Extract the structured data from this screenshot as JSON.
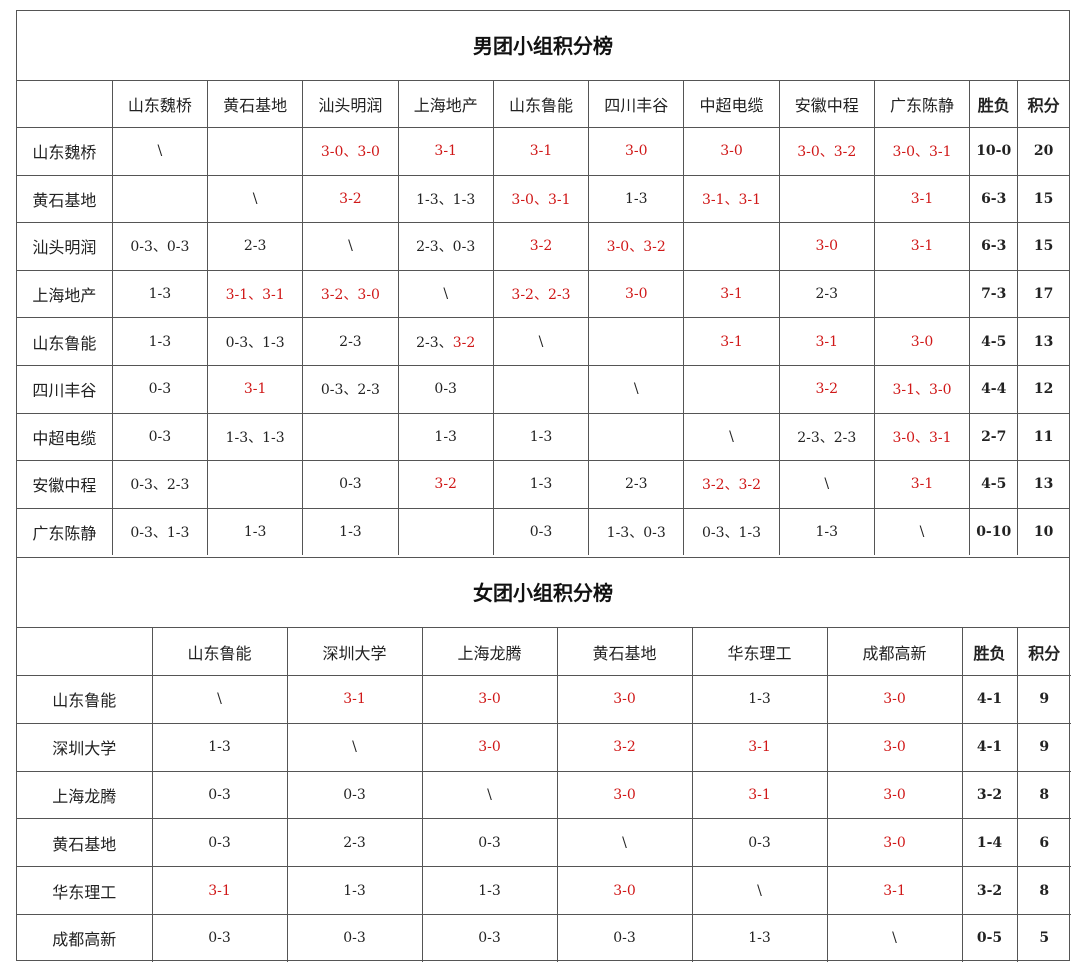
{
  "men": {
    "title": "男团小组积分榜",
    "headers": [
      "山东魏桥",
      "黄石基地",
      "汕头明润",
      "上海地产",
      "山东鲁能",
      "四川丰谷",
      "中超电缆",
      "安徽中程",
      "广东陈静",
      "胜负",
      "积分"
    ],
    "rows": [
      {
        "team": "山东魏桥",
        "cells": [
          {
            "t": "\\",
            "s": "self"
          },
          {
            "t": "",
            "s": "loss"
          },
          {
            "t": "3-0、3-0",
            "s": "win"
          },
          {
            "t": "3-1",
            "s": "win"
          },
          {
            "t": "3-1",
            "s": "win"
          },
          {
            "t": "3-0",
            "s": "win"
          },
          {
            "t": "3-0",
            "s": "win"
          },
          {
            "t": "3-0、3-2",
            "s": "win"
          },
          {
            "t": "3-0、3-1",
            "s": "win"
          }
        ],
        "record": "10-0",
        "points": "20"
      },
      {
        "team": "黄石基地",
        "cells": [
          {
            "t": "",
            "s": "loss"
          },
          {
            "t": "\\",
            "s": "self"
          },
          {
            "t": "3-2",
            "s": "win"
          },
          {
            "t": "1-3、1-3",
            "s": "loss"
          },
          {
            "t": "3-0、3-1",
            "s": "win"
          },
          {
            "t": "1-3",
            "s": "loss"
          },
          {
            "t": "3-1、3-1",
            "s": "win"
          },
          {
            "t": "",
            "s": "loss"
          },
          {
            "t": "3-1",
            "s": "win"
          }
        ],
        "record": "6-3",
        "points": "15"
      },
      {
        "team": "汕头明润",
        "cells": [
          {
            "t": "0-3、0-3",
            "s": "loss"
          },
          {
            "t": "2-3",
            "s": "loss"
          },
          {
            "t": "\\",
            "s": "self"
          },
          {
            "t": "2-3、0-3",
            "s": "loss"
          },
          {
            "t": "3-2",
            "s": "win"
          },
          {
            "t": "3-0、3-2",
            "s": "win"
          },
          {
            "t": "",
            "s": "loss"
          },
          {
            "t": "3-0",
            "s": "win"
          },
          {
            "t": "3-1",
            "s": "win"
          }
        ],
        "record": "6-3",
        "points": "15"
      },
      {
        "team": "上海地产",
        "cells": [
          {
            "t": "1-3",
            "s": "loss"
          },
          {
            "t": "3-1、3-1",
            "s": "win"
          },
          {
            "t": "3-2、3-0",
            "s": "win"
          },
          {
            "t": "\\",
            "s": "self"
          },
          {
            "t": "3-2、2-3",
            "s": "win"
          },
          {
            "t": "3-0",
            "s": "win"
          },
          {
            "t": "3-1",
            "s": "win"
          },
          {
            "t": "2-3",
            "s": "loss"
          },
          {
            "t": "",
            "s": "loss"
          }
        ],
        "record": "7-3",
        "points": "17"
      },
      {
        "team": "山东鲁能",
        "cells": [
          {
            "t": "1-3",
            "s": "loss"
          },
          {
            "t": "0-3、1-3",
            "s": "loss"
          },
          {
            "t": "2-3",
            "s": "loss"
          },
          {
            "t": "2-3、",
            "s": "loss",
            "t2": "3-2",
            "s2": "win"
          },
          {
            "t": "\\",
            "s": "self"
          },
          {
            "t": "",
            "s": "loss"
          },
          {
            "t": "3-1",
            "s": "win"
          },
          {
            "t": "3-1",
            "s": "win"
          },
          {
            "t": "3-0",
            "s": "win"
          }
        ],
        "record": "4-5",
        "points": "13"
      },
      {
        "team": "四川丰谷",
        "cells": [
          {
            "t": "0-3",
            "s": "loss"
          },
          {
            "t": "3-1",
            "s": "win"
          },
          {
            "t": "0-3、2-3",
            "s": "loss"
          },
          {
            "t": "0-3",
            "s": "loss"
          },
          {
            "t": "",
            "s": "loss"
          },
          {
            "t": "\\",
            "s": "self"
          },
          {
            "t": "",
            "s": "loss"
          },
          {
            "t": "3-2",
            "s": "win"
          },
          {
            "t": "3-1、3-0",
            "s": "win"
          }
        ],
        "record": "4-4",
        "points": "12"
      },
      {
        "team": "中超电缆",
        "cells": [
          {
            "t": "0-3",
            "s": "loss"
          },
          {
            "t": "1-3、1-3",
            "s": "loss"
          },
          {
            "t": "",
            "s": "loss"
          },
          {
            "t": "1-3",
            "s": "loss"
          },
          {
            "t": "1-3",
            "s": "loss"
          },
          {
            "t": "",
            "s": "loss"
          },
          {
            "t": "\\",
            "s": "self"
          },
          {
            "t": "2-3、2-3",
            "s": "loss"
          },
          {
            "t": "3-0、3-1",
            "s": "win"
          }
        ],
        "record": "2-7",
        "points": "11"
      },
      {
        "team": "安徽中程",
        "cells": [
          {
            "t": "0-3、2-3",
            "s": "loss"
          },
          {
            "t": "",
            "s": "loss"
          },
          {
            "t": "0-3",
            "s": "loss"
          },
          {
            "t": "3-2",
            "s": "win"
          },
          {
            "t": "1-3",
            "s": "loss"
          },
          {
            "t": "2-3",
            "s": "loss"
          },
          {
            "t": "3-2、3-2",
            "s": "win"
          },
          {
            "t": "\\",
            "s": "self"
          },
          {
            "t": "3-1",
            "s": "win"
          }
        ],
        "record": "4-5",
        "points": "13"
      },
      {
        "team": "广东陈静",
        "cells": [
          {
            "t": "0-3、1-3",
            "s": "loss"
          },
          {
            "t": "1-3",
            "s": "loss"
          },
          {
            "t": "1-3",
            "s": "loss"
          },
          {
            "t": "",
            "s": "loss"
          },
          {
            "t": "0-3",
            "s": "loss"
          },
          {
            "t": "1-3、0-3",
            "s": "loss"
          },
          {
            "t": "0-3、1-3",
            "s": "loss"
          },
          {
            "t": "1-3",
            "s": "loss"
          },
          {
            "t": "\\",
            "s": "self"
          }
        ],
        "record": "0-10",
        "points": "10"
      }
    ]
  },
  "women": {
    "title": "女团小组积分榜",
    "headers": [
      "山东鲁能",
      "深圳大学",
      "上海龙腾",
      "黄石基地",
      "华东理工",
      "成都高新",
      "胜负",
      "积分"
    ],
    "rows": [
      {
        "team": "山东鲁能",
        "cells": [
          {
            "t": "\\",
            "s": "self"
          },
          {
            "t": "3-1",
            "s": "win"
          },
          {
            "t": "3-0",
            "s": "win"
          },
          {
            "t": "3-0",
            "s": "win"
          },
          {
            "t": "1-3",
            "s": "loss"
          },
          {
            "t": "3-0",
            "s": "win"
          }
        ],
        "record": "4-1",
        "points": "9"
      },
      {
        "team": "深圳大学",
        "cells": [
          {
            "t": "1-3",
            "s": "loss"
          },
          {
            "t": "\\",
            "s": "self"
          },
          {
            "t": "3-0",
            "s": "win"
          },
          {
            "t": "3-2",
            "s": "win"
          },
          {
            "t": "3-1",
            "s": "win"
          },
          {
            "t": "3-0",
            "s": "win"
          }
        ],
        "record": "4-1",
        "points": "9"
      },
      {
        "team": "上海龙腾",
        "cells": [
          {
            "t": "0-3",
            "s": "loss"
          },
          {
            "t": "0-3",
            "s": "loss"
          },
          {
            "t": "\\",
            "s": "self"
          },
          {
            "t": "3-0",
            "s": "win"
          },
          {
            "t": "3-1",
            "s": "win"
          },
          {
            "t": "3-0",
            "s": "win"
          }
        ],
        "record": "3-2",
        "points": "8"
      },
      {
        "team": "黄石基地",
        "cells": [
          {
            "t": "0-3",
            "s": "loss"
          },
          {
            "t": "2-3",
            "s": "loss"
          },
          {
            "t": "0-3",
            "s": "loss"
          },
          {
            "t": "\\",
            "s": "self"
          },
          {
            "t": "0-3",
            "s": "loss"
          },
          {
            "t": "3-0",
            "s": "win"
          }
        ],
        "record": "1-4",
        "points": "6"
      },
      {
        "team": "华东理工",
        "cells": [
          {
            "t": "3-1",
            "s": "win"
          },
          {
            "t": "1-3",
            "s": "loss"
          },
          {
            "t": "1-3",
            "s": "loss"
          },
          {
            "t": "3-0",
            "s": "win"
          },
          {
            "t": "\\",
            "s": "self"
          },
          {
            "t": "3-1",
            "s": "win"
          }
        ],
        "record": "3-2",
        "points": "8"
      },
      {
        "team": "成都高新",
        "cells": [
          {
            "t": "0-3",
            "s": "loss"
          },
          {
            "t": "0-3",
            "s": "loss"
          },
          {
            "t": "0-3",
            "s": "loss"
          },
          {
            "t": "0-3",
            "s": "loss"
          },
          {
            "t": "1-3",
            "s": "loss"
          },
          {
            "t": "\\",
            "s": "self"
          }
        ],
        "record": "0-5",
        "points": "5"
      }
    ]
  },
  "colors": {
    "win": "#d01818",
    "loss": "#222222",
    "border": "#555555"
  }
}
